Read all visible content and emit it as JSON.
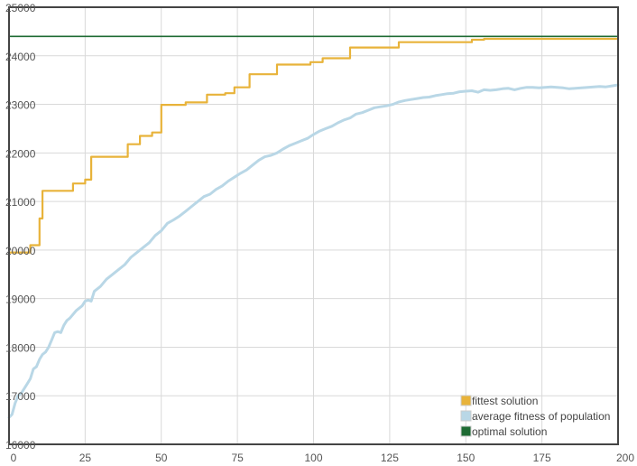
{
  "chart_data": {
    "type": "line",
    "title": "",
    "xlabel": "",
    "ylabel": "",
    "xlim": [
      0,
      200
    ],
    "ylim": [
      16000,
      25000
    ],
    "xticks": [
      0,
      25,
      50,
      75,
      100,
      125,
      150,
      175,
      200
    ],
    "yticks": [
      16000,
      17000,
      18000,
      19000,
      20000,
      21000,
      22000,
      23000,
      24000,
      25000
    ],
    "grid": true,
    "legend_position": "bottom-right",
    "series": [
      {
        "name": "fittest solution",
        "color": "#e8b33a",
        "step": true,
        "points": [
          [
            0,
            19950
          ],
          [
            6,
            19950
          ],
          [
            7,
            20100
          ],
          [
            8,
            20100
          ],
          [
            10,
            20650
          ],
          [
            11,
            21220
          ],
          [
            20,
            21220
          ],
          [
            21,
            21370
          ],
          [
            24,
            21370
          ],
          [
            25,
            21450
          ],
          [
            27,
            21920
          ],
          [
            37,
            21920
          ],
          [
            39,
            22180
          ],
          [
            42,
            22180
          ],
          [
            43,
            22350
          ],
          [
            46,
            22350
          ],
          [
            47,
            22420
          ],
          [
            49,
            22420
          ],
          [
            50,
            22990
          ],
          [
            57,
            22990
          ],
          [
            58,
            23040
          ],
          [
            64,
            23040
          ],
          [
            65,
            23200
          ],
          [
            70,
            23200
          ],
          [
            71,
            23230
          ],
          [
            73,
            23230
          ],
          [
            74,
            23350
          ],
          [
            77,
            23350
          ],
          [
            79,
            23620
          ],
          [
            87,
            23620
          ],
          [
            88,
            23820
          ],
          [
            98,
            23820
          ],
          [
            99,
            23870
          ],
          [
            102,
            23870
          ],
          [
            103,
            23950
          ],
          [
            110,
            23950
          ],
          [
            112,
            24170
          ],
          [
            127,
            24170
          ],
          [
            128,
            24280
          ],
          [
            151,
            24280
          ],
          [
            152,
            24330
          ],
          [
            155,
            24330
          ],
          [
            156,
            24350
          ],
          [
            200,
            24350
          ]
        ]
      },
      {
        "name": "average fitness of population",
        "color": "#b9d7e6",
        "step": false,
        "points": [
          [
            0,
            16550
          ],
          [
            1,
            16620
          ],
          [
            2,
            16850
          ],
          [
            3,
            17000
          ],
          [
            4,
            17050
          ],
          [
            5,
            17150
          ],
          [
            6,
            17250
          ],
          [
            7,
            17350
          ],
          [
            8,
            17550
          ],
          [
            9,
            17600
          ],
          [
            10,
            17750
          ],
          [
            11,
            17850
          ],
          [
            12,
            17900
          ],
          [
            13,
            18000
          ],
          [
            14,
            18150
          ],
          [
            15,
            18300
          ],
          [
            16,
            18320
          ],
          [
            17,
            18300
          ],
          [
            18,
            18450
          ],
          [
            19,
            18550
          ],
          [
            20,
            18600
          ],
          [
            22,
            18750
          ],
          [
            24,
            18850
          ],
          [
            25,
            18950
          ],
          [
            26,
            18970
          ],
          [
            27,
            18950
          ],
          [
            28,
            19150
          ],
          [
            30,
            19250
          ],
          [
            32,
            19400
          ],
          [
            34,
            19500
          ],
          [
            36,
            19600
          ],
          [
            38,
            19700
          ],
          [
            40,
            19850
          ],
          [
            42,
            19950
          ],
          [
            44,
            20050
          ],
          [
            46,
            20150
          ],
          [
            48,
            20300
          ],
          [
            50,
            20400
          ],
          [
            52,
            20550
          ],
          [
            54,
            20620
          ],
          [
            56,
            20700
          ],
          [
            58,
            20800
          ],
          [
            60,
            20900
          ],
          [
            62,
            21000
          ],
          [
            64,
            21100
          ],
          [
            66,
            21150
          ],
          [
            68,
            21250
          ],
          [
            70,
            21320
          ],
          [
            72,
            21420
          ],
          [
            74,
            21500
          ],
          [
            76,
            21580
          ],
          [
            78,
            21650
          ],
          [
            80,
            21750
          ],
          [
            82,
            21850
          ],
          [
            84,
            21920
          ],
          [
            86,
            21950
          ],
          [
            88,
            22000
          ],
          [
            90,
            22080
          ],
          [
            92,
            22150
          ],
          [
            94,
            22200
          ],
          [
            96,
            22250
          ],
          [
            98,
            22300
          ],
          [
            100,
            22380
          ],
          [
            102,
            22450
          ],
          [
            104,
            22500
          ],
          [
            106,
            22550
          ],
          [
            108,
            22620
          ],
          [
            110,
            22680
          ],
          [
            112,
            22720
          ],
          [
            114,
            22800
          ],
          [
            116,
            22830
          ],
          [
            118,
            22880
          ],
          [
            120,
            22930
          ],
          [
            122,
            22950
          ],
          [
            124,
            22970
          ],
          [
            126,
            23000
          ],
          [
            128,
            23050
          ],
          [
            130,
            23080
          ],
          [
            132,
            23100
          ],
          [
            134,
            23120
          ],
          [
            136,
            23140
          ],
          [
            138,
            23150
          ],
          [
            140,
            23180
          ],
          [
            142,
            23200
          ],
          [
            144,
            23220
          ],
          [
            146,
            23230
          ],
          [
            148,
            23260
          ],
          [
            150,
            23270
          ],
          [
            152,
            23280
          ],
          [
            154,
            23250
          ],
          [
            156,
            23300
          ],
          [
            158,
            23290
          ],
          [
            160,
            23300
          ],
          [
            162,
            23320
          ],
          [
            164,
            23330
          ],
          [
            166,
            23300
          ],
          [
            168,
            23330
          ],
          [
            170,
            23350
          ],
          [
            172,
            23350
          ],
          [
            174,
            23340
          ],
          [
            176,
            23350
          ],
          [
            178,
            23360
          ],
          [
            180,
            23350
          ],
          [
            182,
            23340
          ],
          [
            184,
            23320
          ],
          [
            186,
            23330
          ],
          [
            188,
            23340
          ],
          [
            190,
            23350
          ],
          [
            192,
            23360
          ],
          [
            194,
            23370
          ],
          [
            196,
            23360
          ],
          [
            198,
            23380
          ],
          [
            200,
            23400
          ]
        ]
      },
      {
        "name": "optimal solution",
        "color": "#1e6b33",
        "step": false,
        "points": [
          [
            0,
            24400
          ],
          [
            200,
            24400
          ]
        ]
      }
    ]
  }
}
